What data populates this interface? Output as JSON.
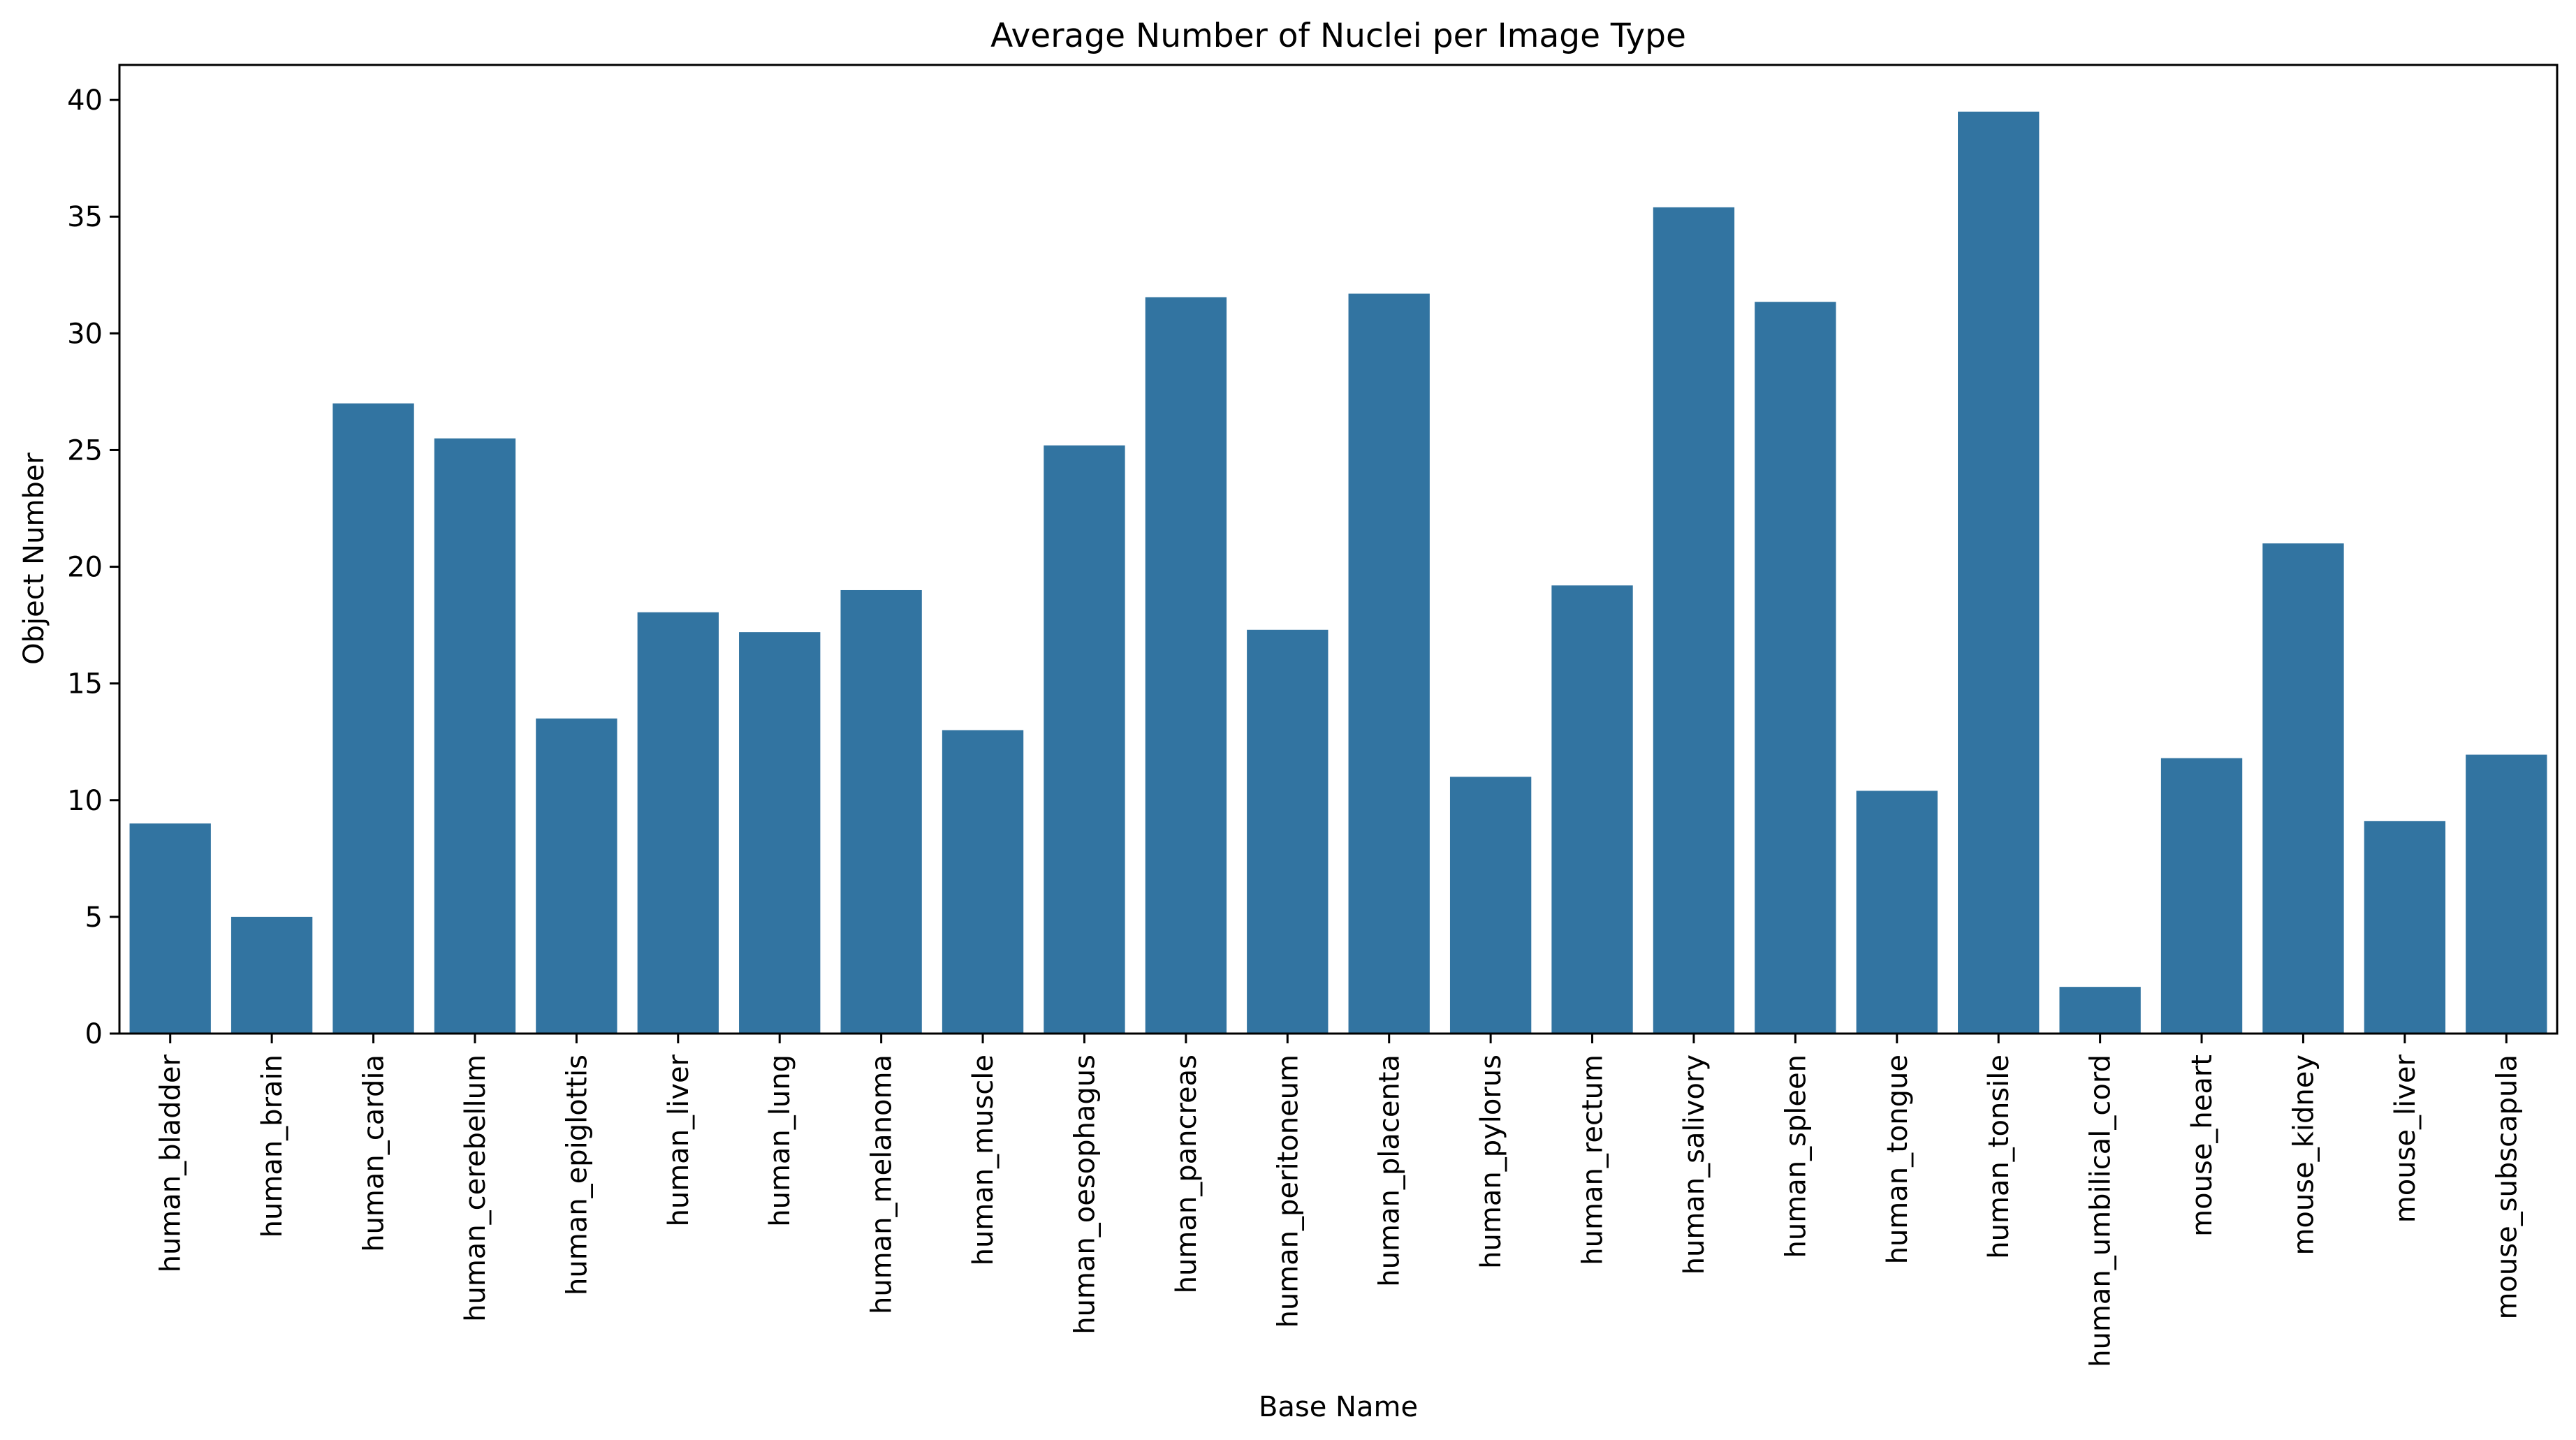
{
  "chart_data": {
    "type": "bar",
    "title": "Average Number of Nuclei per Image Type",
    "xlabel": "Base Name",
    "ylabel": "Object Number",
    "ylim": [
      0,
      41.5
    ],
    "yticks": [
      0,
      5,
      10,
      15,
      20,
      25,
      30,
      35,
      40
    ],
    "grid": false,
    "legend": "none",
    "bar_color": "#3274a1",
    "categories": [
      "human_bladder",
      "human_brain",
      "human_cardia",
      "human_cerebellum",
      "human_epiglottis",
      "human_liver",
      "human_lung",
      "human_melanoma",
      "human_muscle",
      "human_oesophagus",
      "human_pancreas",
      "human_peritoneum",
      "human_placenta",
      "human_pylorus",
      "human_rectum",
      "human_salivory",
      "human_spleen",
      "human_tongue",
      "human_tonsile",
      "human_umbilical_cord",
      "mouse_heart",
      "mouse_kidney",
      "mouse_liver",
      "mouse_subscapula"
    ],
    "values": [
      9.0,
      5.0,
      27.0,
      25.5,
      13.5,
      18.05,
      17.2,
      19.0,
      13.0,
      25.2,
      31.55,
      17.3,
      31.7,
      11.0,
      19.2,
      35.4,
      31.35,
      10.4,
      39.5,
      2.0,
      11.8,
      21.0,
      9.1,
      11.95
    ]
  }
}
